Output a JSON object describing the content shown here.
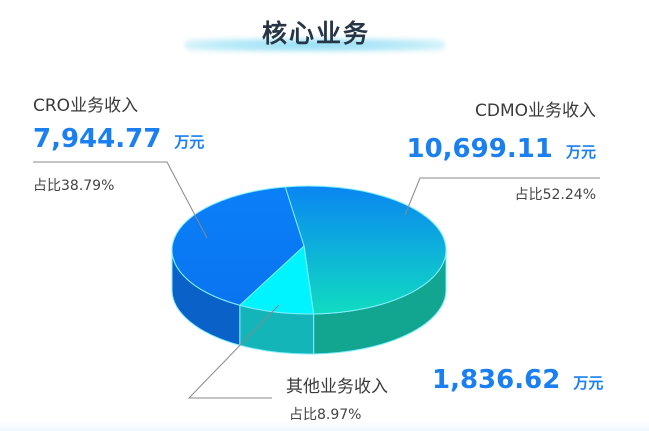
{
  "title": "核心业务",
  "chart_data": {
    "type": "pie",
    "style": "3d",
    "title": "核心业务",
    "unit": "万元",
    "slices": [
      {
        "name": "CDMO业务收入",
        "value": 10699.11,
        "value_text": "10,699.11",
        "percent": 52.24,
        "percent_text": "占比52.24%",
        "top_color_from": "#0a86f2",
        "top_color_to": "#10dcc0",
        "side_color": "#12a58f"
      },
      {
        "name": "其他业务收入",
        "value": 1836.62,
        "value_text": "1,836.62",
        "percent": 8.97,
        "percent_text": "占比8.97%",
        "top_color_from": "#00f4ff",
        "top_color_to": "#00f4ff",
        "side_color": "#14b5b8"
      },
      {
        "name": "CRO业务收入",
        "value": 7944.77,
        "value_text": "7,944.77",
        "percent": 38.79,
        "percent_text": "占比38.79%",
        "top_color_from": "#0a80f8",
        "top_color_to": "#0a74f0",
        "side_color": "#0a62c8"
      }
    ],
    "legend": "none"
  }
}
